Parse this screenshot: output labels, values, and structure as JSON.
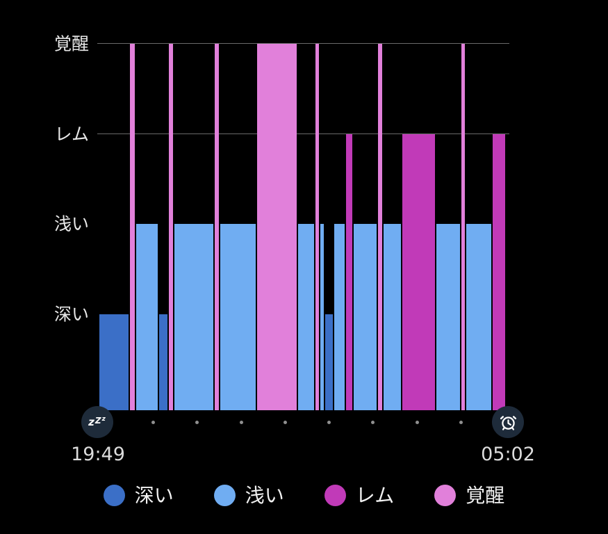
{
  "chart_data": {
    "type": "bar",
    "subtype": "sleep-hypnogram",
    "start_time": "19:49",
    "end_time": "05:02",
    "tick_dot_count": 8,
    "gridline_levels": [
      1.0,
      0.7533
    ],
    "stages": [
      {
        "id": "deep",
        "label": "深い",
        "color": "#3b6fc7",
        "level": 0.262
      },
      {
        "id": "light",
        "label": "浅い",
        "color": "#70adf2",
        "level": 0.5085
      },
      {
        "id": "rem",
        "label": "レム",
        "color": "#c13ab8",
        "level": 0.7533
      },
      {
        "id": "awake",
        "label": "覚醒",
        "color": "#e180da",
        "level": 1.0
      }
    ],
    "segments": [
      {
        "stage": "deep",
        "start": 0.005,
        "end": 0.0798
      },
      {
        "stage": "awake",
        "start": 0.0798,
        "end": 0.0941
      },
      {
        "stage": "light",
        "start": 0.0941,
        "end": 0.1496
      },
      {
        "stage": "deep",
        "start": 0.1496,
        "end": 0.1731
      },
      {
        "stage": "awake",
        "start": 0.1731,
        "end": 0.1866
      },
      {
        "stage": "light",
        "start": 0.1866,
        "end": 0.2857
      },
      {
        "stage": "awake",
        "start": 0.2857,
        "end": 0.2992
      },
      {
        "stage": "light",
        "start": 0.2992,
        "end": 0.3882
      },
      {
        "stage": "awake",
        "start": 0.3882,
        "end": 0.4874
      },
      {
        "stage": "light",
        "start": 0.4874,
        "end": 0.5294
      },
      {
        "stage": "awake",
        "start": 0.5294,
        "end": 0.5412
      },
      {
        "stage": "light",
        "start": 0.5412,
        "end": 0.5529
      },
      {
        "stage": "deep",
        "start": 0.5529,
        "end": 0.5748
      },
      {
        "stage": "light",
        "start": 0.5748,
        "end": 0.6034
      },
      {
        "stage": "rem",
        "start": 0.6034,
        "end": 0.6218
      },
      {
        "stage": "light",
        "start": 0.6218,
        "end": 0.6807
      },
      {
        "stage": "awake",
        "start": 0.6807,
        "end": 0.6941
      },
      {
        "stage": "light",
        "start": 0.6941,
        "end": 0.7395
      },
      {
        "stage": "rem",
        "start": 0.7395,
        "end": 0.8235
      },
      {
        "stage": "light",
        "start": 0.8235,
        "end": 0.884
      },
      {
        "stage": "awake",
        "start": 0.884,
        "end": 0.8958
      },
      {
        "stage": "light",
        "start": 0.8958,
        "end": 0.9597
      },
      {
        "stage": "rem",
        "start": 0.9597,
        "end": 0.9933
      }
    ],
    "axis": {
      "y_tick_labels_top_to_bottom": [
        "覚醒",
        "レム",
        "浅い",
        "深い"
      ],
      "grid": "partial",
      "legend_position": "bottom"
    }
  },
  "icons": {
    "left": "sleep-zzz-icon",
    "right": "alarm-clock-icon",
    "zzz_text_big": "z",
    "zzz_text_mid": "Z",
    "zzz_text_small": "z"
  },
  "ui_colors": {
    "background": "#000000",
    "gridline": "#6a6a6a",
    "chip_background": "#1e2b3a",
    "text": "#e8e8e8"
  }
}
